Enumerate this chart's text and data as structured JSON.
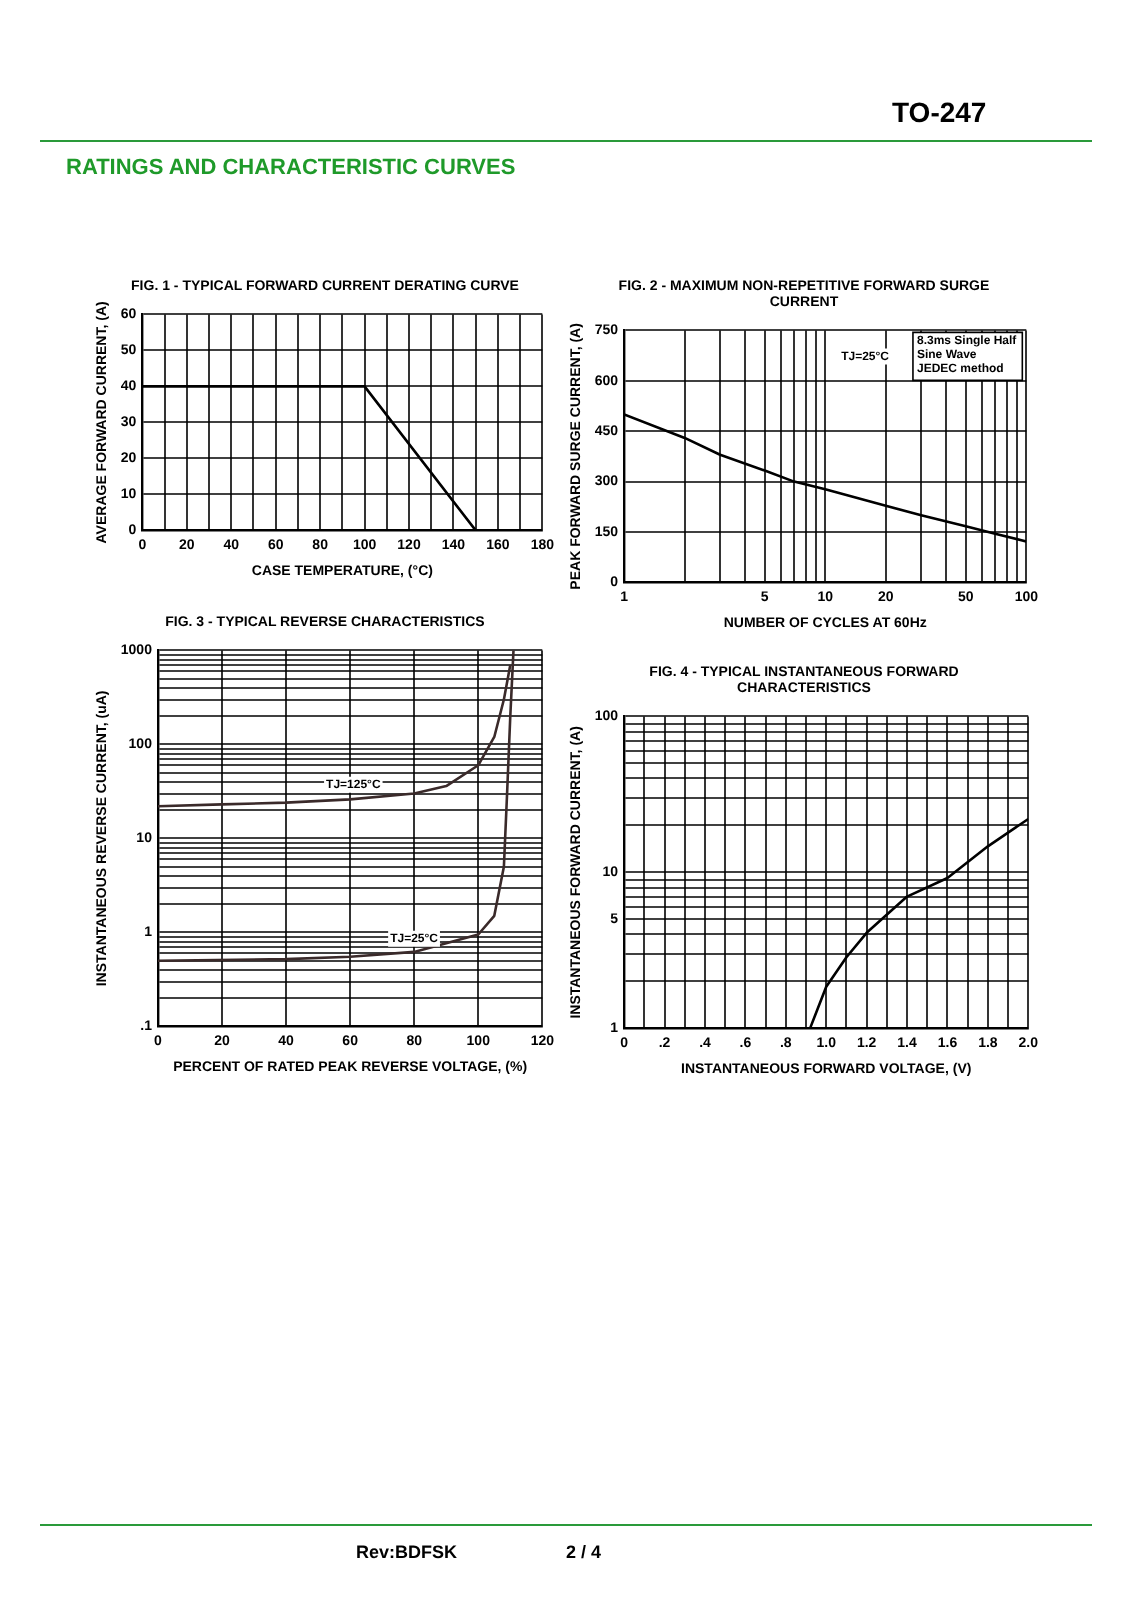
{
  "chart_data": [
    {
      "type": "line",
      "title": "FIG. 1 - TYPICAL FORWARD CURRENT DERATING CURVE",
      "xlabel": "CASE TEMPERATURE, (°C)",
      "ylabel": "AVERAGE FORWARD CURRENT, (A)",
      "x": [
        0,
        100,
        150
      ],
      "series": [
        {
          "color": "#000000",
          "values": [
            40,
            40,
            0
          ]
        }
      ],
      "xlim": [
        0,
        180
      ],
      "xticks": [
        0,
        {
          "value": 10,
          "label": null
        },
        20,
        {
          "value": 30,
          "label": null
        },
        40,
        {
          "value": 50,
          "label": null
        },
        60,
        {
          "value": 70,
          "label": null
        },
        80,
        {
          "value": 90,
          "label": null
        },
        100,
        {
          "value": 110,
          "label": null
        },
        120,
        {
          "value": 130,
          "label": null
        },
        140,
        {
          "value": 150,
          "label": null
        },
        160,
        {
          "value": 170,
          "label": null
        },
        180
      ],
      "ylim": [
        0,
        60
      ],
      "yticks": [
        0,
        10,
        20,
        30,
        40,
        50,
        60
      ],
      "grid": true,
      "legend": false,
      "marker": "none",
      "line_style": "solid"
    },
    {
      "type": "line",
      "title": "FIG. 2 - MAXIMUM NON-REPETITIVE FORWARD SURGE CURRENT",
      "xlabel": "NUMBER OF CYCLES AT 60Hz",
      "ylabel": "PEAK FORWARD SURGE CURRENT, (A)",
      "annotations": [
        "TJ=25°C",
        "8.3ms Single Half\nSine Wave\nJEDEC method"
      ],
      "x": [
        1,
        2,
        3,
        5,
        7,
        10,
        20,
        30,
        50,
        70,
        100
      ],
      "series": [
        {
          "color": "#000000",
          "values": [
            500,
            430,
            380,
            333,
            300,
            277,
            228,
            200,
            167,
            145,
            122
          ]
        }
      ],
      "log": "x",
      "xlim": [
        1,
        100
      ],
      "xticks": [
        1,
        {
          "value": 2,
          "label": null
        },
        {
          "value": 3,
          "label": null
        },
        {
          "value": 4,
          "label": null
        },
        5,
        {
          "value": 6,
          "label": null
        },
        {
          "value": 7,
          "label": null
        },
        {
          "value": 8,
          "label": null
        },
        {
          "value": 9,
          "label": null
        },
        10,
        20,
        {
          "value": 30,
          "label": null
        },
        {
          "value": 40,
          "label": null
        },
        50,
        {
          "value": 60,
          "label": null
        },
        {
          "value": 70,
          "label": null
        },
        {
          "value": 80,
          "label": null
        },
        {
          "value": 90,
          "label": null
        },
        100
      ],
      "ylim": [
        0,
        750
      ],
      "yticks": [
        0,
        150,
        300,
        450,
        600,
        750
      ],
      "grid": true,
      "legend": false,
      "marker": "none",
      "line_style": "solid"
    },
    {
      "type": "line",
      "title": "FIG. 3 - TYPICAL REVERSE CHARACTERISTICS",
      "xlabel": "PERCENT OF RATED PEAK REVERSE VOLTAGE, (%)",
      "ylabel": "INSTANTANEOUS REVERSE CURRENT, (uA)",
      "series": [
        {
          "name": "TJ=125°C",
          "color": "#3a2a2a",
          "x": [
            0,
            20,
            40,
            60,
            80,
            90,
            100,
            105,
            108,
            110
          ],
          "values": [
            22,
            23,
            24,
            26,
            30,
            36,
            60,
            120,
            300,
            700
          ]
        },
        {
          "name": "TJ=25°C",
          "color": "#3a2a2a",
          "x": [
            0,
            40,
            60,
            80,
            100,
            105,
            108,
            109,
            110,
            111
          ],
          "values": [
            0.5,
            0.52,
            0.55,
            0.62,
            0.95,
            1.5,
            5,
            30,
            200,
            1000
          ]
        }
      ],
      "log": "y",
      "xlim": [
        0,
        120
      ],
      "xticks": [
        0,
        20,
        40,
        60,
        80,
        100,
        120
      ],
      "ylim": [
        0.1,
        1000
      ],
      "yticks": [
        {
          "value": 0.1,
          "label": ".1"
        },
        {
          "value": 0.2,
          "label": null
        },
        {
          "value": 0.3,
          "label": null
        },
        {
          "value": 0.4,
          "label": null
        },
        {
          "value": 0.5,
          "label": null
        },
        {
          "value": 0.6,
          "label": null
        },
        {
          "value": 0.7,
          "label": null
        },
        {
          "value": 0.8,
          "label": null
        },
        {
          "value": 0.9,
          "label": null
        },
        1,
        {
          "value": 2,
          "label": null
        },
        {
          "value": 3,
          "label": null
        },
        {
          "value": 4,
          "label": null
        },
        {
          "value": 5,
          "label": null
        },
        {
          "value": 6,
          "label": null
        },
        {
          "value": 7,
          "label": null
        },
        {
          "value": 8,
          "label": null
        },
        {
          "value": 9,
          "label": null
        },
        10,
        {
          "value": 20,
          "label": null
        },
        {
          "value": 30,
          "label": null
        },
        {
          "value": 40,
          "label": null
        },
        {
          "value": 50,
          "label": null
        },
        {
          "value": 60,
          "label": null
        },
        {
          "value": 70,
          "label": null
        },
        {
          "value": 80,
          "label": null
        },
        {
          "value": 90,
          "label": null
        },
        100,
        {
          "value": 200,
          "label": null
        },
        {
          "value": 300,
          "label": null
        },
        {
          "value": 400,
          "label": null
        },
        {
          "value": 500,
          "label": null
        },
        {
          "value": 600,
          "label": null
        },
        {
          "value": 700,
          "label": null
        },
        {
          "value": 800,
          "label": null
        },
        {
          "value": 900,
          "label": null
        },
        1000
      ],
      "grid": true,
      "legend": false,
      "marker": "none",
      "line_style": "solid"
    },
    {
      "type": "line",
      "title": "FIG. 4 - TYPICAL INSTANTANEOUS FORWARD CHARACTERISTICS",
      "xlabel": "INSTANTANEOUS FORWARD VOLTAGE, (V)",
      "ylabel": "INSTANTANEOUS FORWARD CURRENT, (A)",
      "x": [
        0.92,
        1.0,
        1.1,
        1.2,
        1.4,
        1.6,
        1.8,
        2.0
      ],
      "series": [
        {
          "color": "#000000",
          "values": [
            1,
            1.85,
            2.86,
            4.1,
            7,
            9.2,
            14.7,
            22
          ]
        }
      ],
      "log": "y",
      "xlim": [
        0,
        2.0
      ],
      "xticks": [
        0,
        {
          "value": 0.1,
          "label": null
        },
        {
          "value": 0.2,
          "label": ".2"
        },
        {
          "value": 0.3,
          "label": null
        },
        {
          "value": 0.4,
          "label": ".4"
        },
        {
          "value": 0.5,
          "label": null
        },
        {
          "value": 0.6,
          "label": ".6"
        },
        {
          "value": 0.7,
          "label": null
        },
        {
          "value": 0.8,
          "label": ".8"
        },
        {
          "value": 0.9,
          "label": null
        },
        {
          "value": 1.0,
          "label": "1.0"
        },
        {
          "value": 1.1,
          "label": null
        },
        1.2,
        {
          "value": 1.3,
          "label": null
        },
        1.4,
        {
          "value": 1.5,
          "label": null
        },
        1.6,
        {
          "value": 1.7,
          "label": null
        },
        1.8,
        {
          "value": 1.9,
          "label": null
        },
        {
          "value": 2.0,
          "label": "2.0"
        }
      ],
      "ylim": [
        1,
        100
      ],
      "yticks": [
        1,
        {
          "value": 2,
          "label": null
        },
        {
          "value": 3,
          "label": null
        },
        {
          "value": 4,
          "label": null
        },
        5,
        {
          "value": 6,
          "label": null
        },
        {
          "value": 7,
          "label": null
        },
        {
          "value": 8,
          "label": null
        },
        {
          "value": 9,
          "label": null
        },
        10,
        {
          "value": 20,
          "label": null
        },
        {
          "value": 30,
          "label": null
        },
        {
          "value": 40,
          "label": null
        },
        {
          "value": 50,
          "label": null
        },
        {
          "value": 60,
          "label": null
        },
        {
          "value": 70,
          "label": null
        },
        {
          "value": 80,
          "label": null
        },
        {
          "value": 90,
          "label": null
        },
        100
      ],
      "grid": true,
      "legend": false,
      "marker": "none",
      "line_style": "solid"
    },
    {
      "type": "other",
      "title": "RATINGS AND CHARACTERISTIC CURVES",
      "annotations": [
        "TO-247",
        "Rev:BDFSK",
        "2 / 4"
      ]
    }
  ]
}
